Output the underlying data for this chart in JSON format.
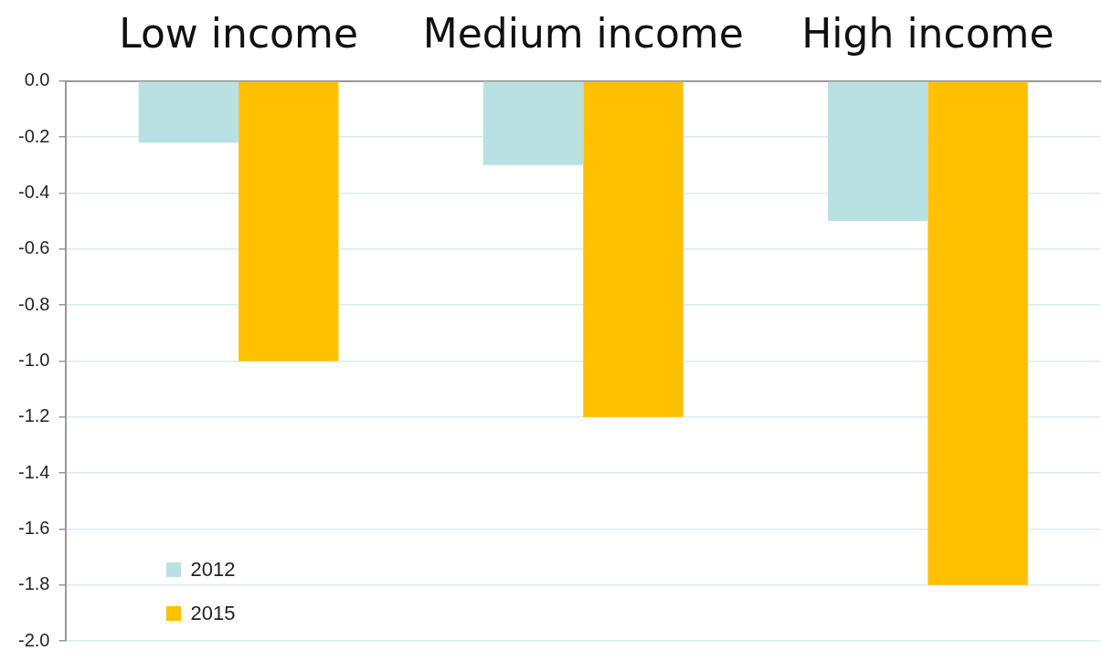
{
  "chart_data": {
    "type": "bar",
    "categories": [
      "Low income",
      "Medium income",
      "High income"
    ],
    "series": [
      {
        "name": "2012",
        "color": "#b9e0e2",
        "values": [
          -0.22,
          -0.3,
          -0.5
        ]
      },
      {
        "name": "2015",
        "color": "#ffc000",
        "values": [
          -1.0,
          -1.2,
          -1.8
        ]
      }
    ],
    "ylim": [
      -2.0,
      0.0
    ],
    "yticks": [
      {
        "value": 0,
        "label": "0.0"
      },
      {
        "value": -0.2,
        "label": "-0.2"
      },
      {
        "value": -0.4,
        "label": "-0.4"
      },
      {
        "value": -0.6,
        "label": "-0.6"
      },
      {
        "value": -0.8,
        "label": "-0.8"
      },
      {
        "value": -1,
        "label": "-1.0"
      },
      {
        "value": -1.2,
        "label": "-1.2"
      },
      {
        "value": -1.4,
        "label": "-1.4"
      },
      {
        "value": -1.6,
        "label": "-1.6"
      },
      {
        "value": -1.8,
        "label": "-1.8"
      },
      {
        "value": -2,
        "label": "-2.0"
      }
    ],
    "grid": "y",
    "legend": "bottom left"
  }
}
